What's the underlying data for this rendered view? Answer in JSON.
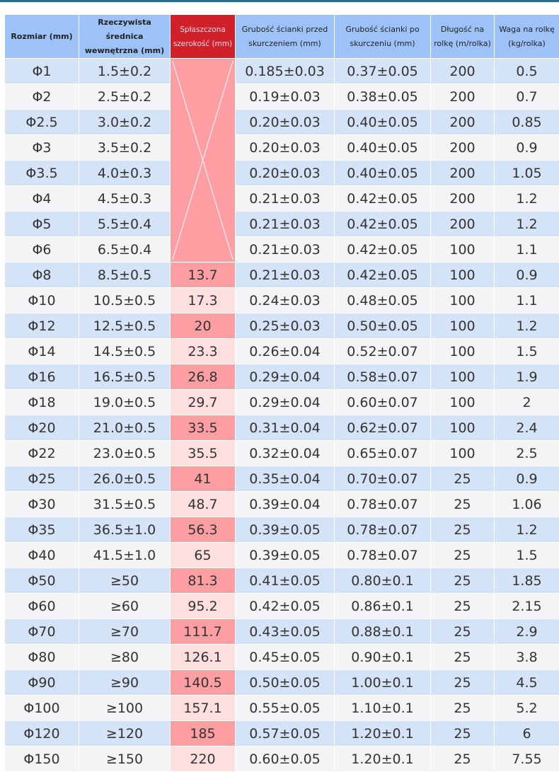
{
  "headers": [
    "Rozmiar (mm)",
    "Rzeczywista średnica wewnętrzna (mm)",
    "Spłaszczona szerokość (mm)",
    "Grubość ścianki przed skurczeniem (mm)",
    "Grubość ścianki po skurczeniu (mm)",
    "Długość na rolkę (m/rolka)",
    "Waga na rolkę (kg/rolka)"
  ],
  "colors": {
    "header": "#9cc2f7",
    "flat_header": "#d0212a",
    "row_odd": "#d5e3f7",
    "row_even": "#f4f4f6",
    "flat_odd": "#fc9ea2",
    "flat_even": "#fddfe0",
    "top_line": "#2a6f8a"
  },
  "rows": [
    [
      "Φ1",
      "1.5±0.2",
      "",
      "0.185±0.03",
      "0.37±0.05",
      "200",
      "0.5"
    ],
    [
      "Φ2",
      "2.5±0.2",
      "",
      "0.19±0.03",
      "0.38±0.05",
      "200",
      "0.7"
    ],
    [
      "Φ2.5",
      "3.0±0.2",
      "",
      "0.20±0.03",
      "0.40±0.05",
      "200",
      "0.85"
    ],
    [
      "Φ3",
      "3.5±0.2",
      "",
      "0.20±0.03",
      "0.40±0.05",
      "200",
      "0.9"
    ],
    [
      "Φ3.5",
      "4.0±0.3",
      "",
      "0.20±0.03",
      "0.40±0.05",
      "200",
      "1.05"
    ],
    [
      "Φ4",
      "4.5±0.3",
      "",
      "0.21±0.03",
      "0.42±0.05",
      "200",
      "1.2"
    ],
    [
      "Φ5",
      "5.5±0.4",
      "",
      "0.21±0.03",
      "0.42±0.05",
      "200",
      "1.2"
    ],
    [
      "Φ6",
      "6.5±0.4",
      "",
      "0.21±0.03",
      "0.42±0.05",
      "100",
      "1.1"
    ],
    [
      "Φ8",
      "8.5±0.5",
      "13.7",
      "0.21±0.03",
      "0.42±0.05",
      "100",
      "0.9"
    ],
    [
      "Φ10",
      "10.5±0.5",
      "17.3",
      "0.24±0.03",
      "0.48±0.05",
      "100",
      "1.1"
    ],
    [
      "Φ12",
      "12.5±0.5",
      "20",
      "0.25±0.03",
      "0.50±0.05",
      "100",
      "1.2"
    ],
    [
      "Φ14",
      "14.5±0.5",
      "23.3",
      "0.26±0.04",
      "0.52±0.07",
      "100",
      "1.5"
    ],
    [
      "Φ16",
      "16.5±0.5",
      "26.8",
      "0.29±0.04",
      "0.58±0.07",
      "100",
      "1.9"
    ],
    [
      "Φ18",
      "19.0±0.5",
      "29.7",
      "0.29±0.04",
      "0.60±0.07",
      "100",
      "2"
    ],
    [
      "Φ20",
      "21.0±0.5",
      "33.5",
      "0.31±0.04",
      "0.62±0.07",
      "100",
      "2.4"
    ],
    [
      "Φ22",
      "23.0±0.5",
      "35.5",
      "0.32±0.04",
      "0.65±0.07",
      "100",
      "2.5"
    ],
    [
      "Φ25",
      "26.0±0.5",
      "41",
      "0.35±0.04",
      "0.70±0.07",
      "25",
      "0.9"
    ],
    [
      "Φ30",
      "31.5±0.5",
      "48.7",
      "0.39±0.04",
      "0.78±0.07",
      "25",
      "1.06"
    ],
    [
      "Φ35",
      "36.5±1.0",
      "56.3",
      "0.39±0.05",
      "0.78±0.07",
      "25",
      "1.2"
    ],
    [
      "Φ40",
      "41.5±1.0",
      "65",
      "0.39±0.05",
      "0.78±0.07",
      "25",
      "1.5"
    ],
    [
      "Φ50",
      "≥50",
      "81.3",
      "0.41±0.05",
      "0.80±0.1",
      "25",
      "1.85"
    ],
    [
      "Φ60",
      "≥60",
      "95.2",
      "0.42±0.05",
      "0.86±0.1",
      "25",
      "2.15"
    ],
    [
      "Φ70",
      "≥70",
      "111.7",
      "0.43±0.05",
      "0.88±0.1",
      "25",
      "2.9"
    ],
    [
      "Φ80",
      "≥80",
      "126.1",
      "0.45±0.05",
      "0.90±0.1",
      "25",
      "3.8"
    ],
    [
      "Φ90",
      "≥90",
      "140.5",
      "0.50±0.05",
      "1.00±0.1",
      "25",
      "4.5"
    ],
    [
      "Φ100",
      "≥100",
      "157.1",
      "0.55±0.05",
      "1.10±0.1",
      "25",
      "5.2"
    ],
    [
      "Φ120",
      "≥120",
      "185",
      "0.57±0.05",
      "1.20±0.1",
      "25",
      "6"
    ],
    [
      "Φ150",
      "≥150",
      "220",
      "0.60±0.05",
      "1.20±0.1",
      "25",
      "7.55"
    ]
  ]
}
